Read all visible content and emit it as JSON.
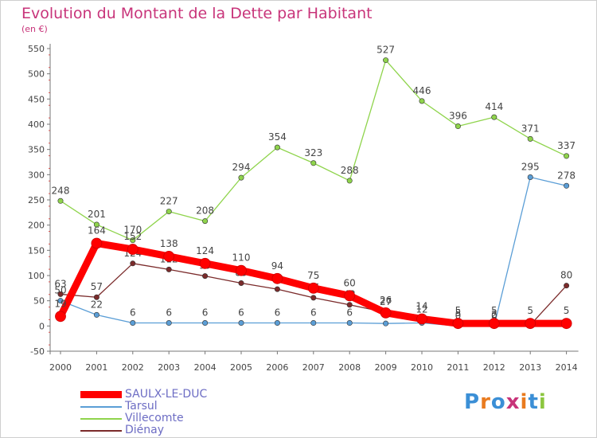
{
  "header": {
    "title": "Evolution du Montant de la Dette par Habitant",
    "unit": "(en €)"
  },
  "logo": {
    "text": "Proxiti",
    "colors": [
      "#3b8fd6",
      "#e97b1f",
      "#3b8fd6",
      "#c8347a",
      "#e97b1f",
      "#3b8fd6",
      "#8cc63f"
    ]
  },
  "chart_data": {
    "type": "line",
    "title": "Evolution du Montant de la Dette par Habitant",
    "ylabel": "(en €)",
    "xlabel": "",
    "ylim": [
      -50,
      550
    ],
    "yticks": [
      -50,
      0,
      50,
      100,
      150,
      200,
      250,
      300,
      350,
      400,
      450,
      500,
      550
    ],
    "x": [
      "2000",
      "2001",
      "2002",
      "2003",
      "2004",
      "2005",
      "2006",
      "2007",
      "2008",
      "2009",
      "2010",
      "2011",
      "2012",
      "2013",
      "2014"
    ],
    "grid": false,
    "legend_position": "bottom-left",
    "series": [
      {
        "name": "Villecomte",
        "color": "#8fd44c",
        "values": [
          248,
          201,
          170,
          227,
          208,
          294,
          354,
          323,
          288,
          527,
          446,
          396,
          414,
          371,
          337
        ],
        "labels": [
          "248",
          "201",
          "170",
          "227",
          "208",
          "294",
          "354",
          "323",
          "288",
          "527",
          "446",
          "396",
          "414",
          "371",
          "337"
        ]
      },
      {
        "name": "Tarsul",
        "color": "#5b9ed6",
        "values": [
          50,
          22,
          6,
          6,
          6,
          6,
          6,
          6,
          6,
          5,
          6,
          0,
          0,
          295,
          278
        ],
        "labels": [
          "50",
          "22",
          "6",
          "6",
          "6",
          "6",
          "6",
          "6",
          "6",
          "",
          "",
          "0",
          "0",
          "295",
          "278"
        ]
      },
      {
        "name": "Diénay",
        "color": "#7b2b2b",
        "values": [
          63,
          57,
          124,
          112,
          99,
          85,
          73,
          56,
          42,
          27,
          12,
          5,
          2,
          2,
          80
        ],
        "labels": [
          "63",
          "57",
          "124",
          "112",
          "99",
          "85",
          "73",
          "56",
          "42",
          "27",
          "12",
          "5",
          "2",
          "",
          "80"
        ]
      },
      {
        "name": "SAULX-LE-DUC",
        "color": "#ff0000",
        "values": [
          19,
          164,
          152,
          138,
          124,
          110,
          94,
          75,
          60,
          26,
          14,
          5,
          5,
          5,
          5
        ],
        "labels": [
          "19",
          "164",
          "152",
          "138",
          "124",
          "110",
          "94",
          "75",
          "60",
          "26",
          "14",
          "5",
          "5",
          "5",
          "5"
        ]
      }
    ],
    "legend": [
      "SAULX-LE-DUC",
      "Tarsul",
      "Villecomte",
      "Diénay"
    ]
  }
}
